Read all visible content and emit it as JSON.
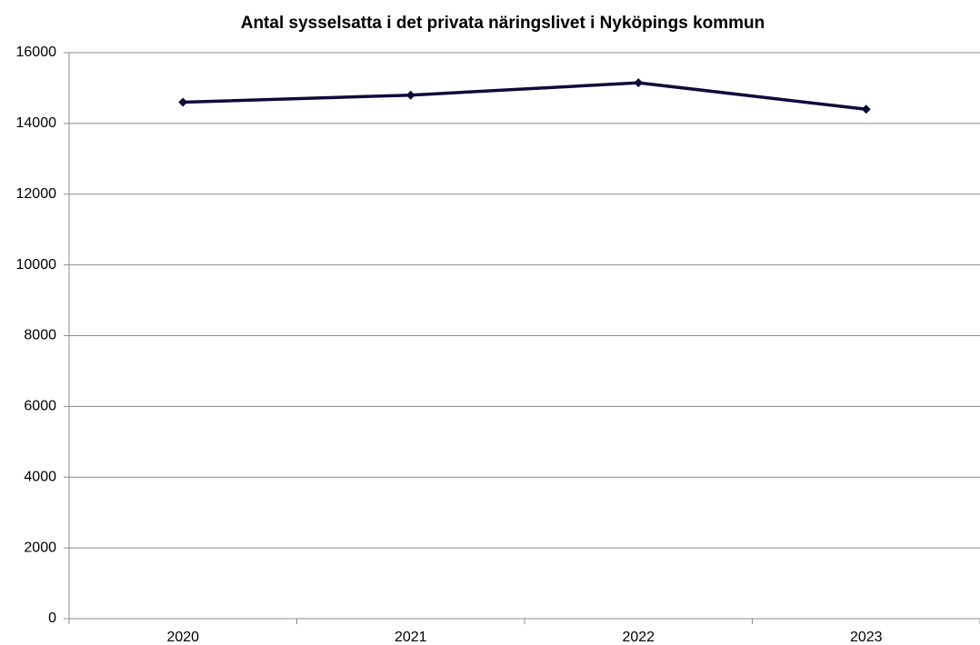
{
  "chart_data": {
    "type": "line",
    "title": "Antal sysselsatta i det privata näringslivet i Nyköpings kommun",
    "categories": [
      "2020",
      "2021",
      "2022",
      "2023"
    ],
    "series": [
      {
        "name": "Antal sysselsatta",
        "color": "#0c0c3c",
        "values": [
          14600,
          14800,
          15150,
          14400
        ]
      }
    ],
    "ylim": [
      0,
      16000
    ],
    "yticks": [
      0,
      2000,
      4000,
      6000,
      8000,
      10000,
      12000,
      14000,
      16000
    ],
    "grid": true
  }
}
